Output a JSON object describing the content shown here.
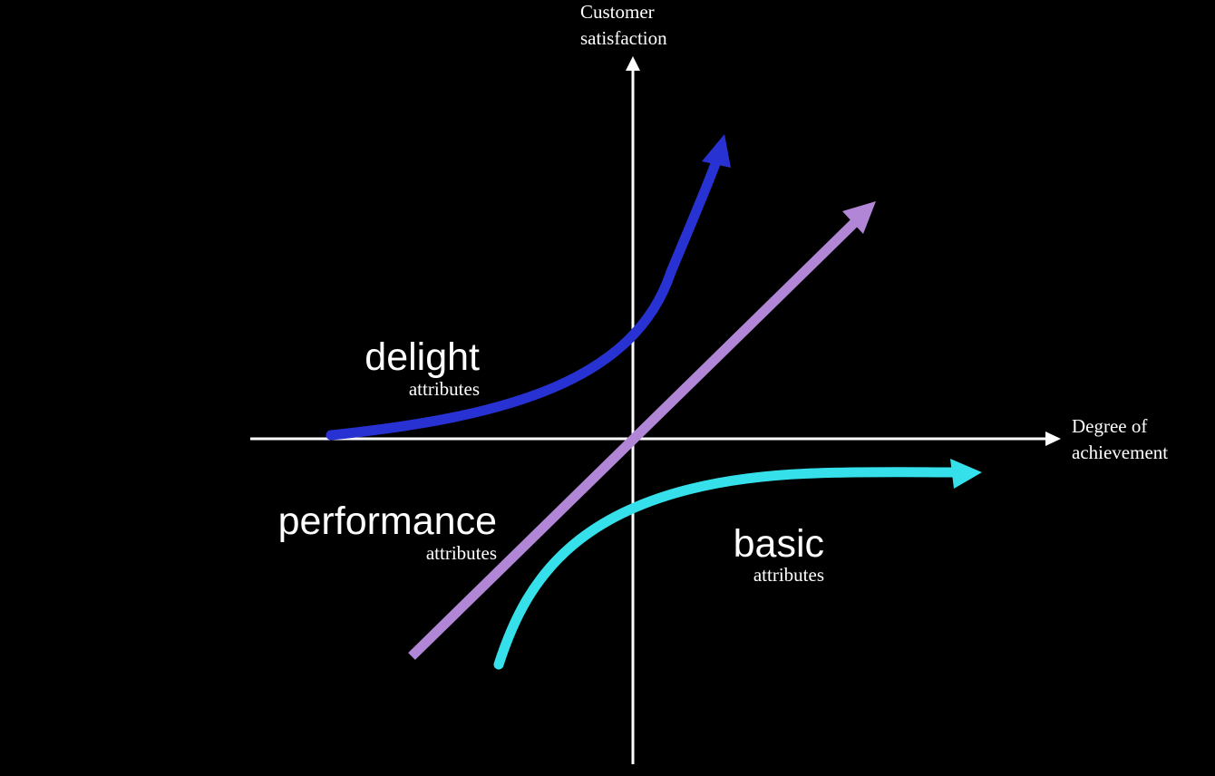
{
  "axes": {
    "y_label_line1": "Customer",
    "y_label_line2": "satisfaction",
    "x_label_line1": "Degree of",
    "x_label_line2": "achievement"
  },
  "categories": {
    "delight": {
      "title": "delight",
      "subtitle": "attributes",
      "color": "#2832d2"
    },
    "performance": {
      "title": "performance",
      "subtitle": "attributes",
      "color": "#b286d6"
    },
    "basic": {
      "title": "basic",
      "subtitle": "attributes",
      "color": "#35e0ea"
    }
  },
  "colors": {
    "background": "#000000",
    "axis": "#ffffff",
    "text": "#ffffff"
  }
}
